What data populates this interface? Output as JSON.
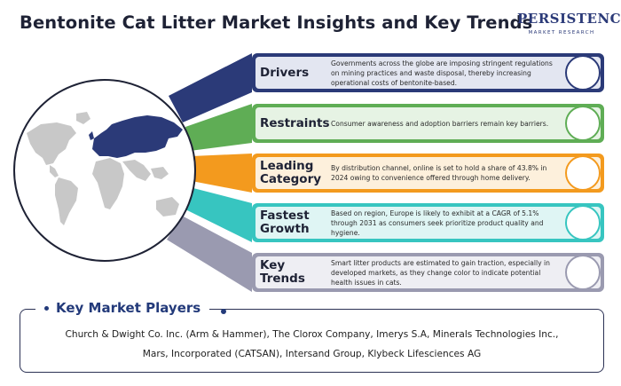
{
  "title": "Bentonite Cat Litter Market Insights and Key Trends",
  "logo": {
    "main": "PERSISTENCE",
    "sub": "MARKET RESEARCH"
  },
  "rows": [
    {
      "label": "Drivers",
      "description": "Governments across the globe are imposing stringent regulations on mining practices and waste disposal, thereby increasing operational costs of bentonite-based.",
      "color": "#2b3a78",
      "fill": "#e3e6f1"
    },
    {
      "label": "Restraints",
      "description": "Consumer awareness and adoption barriers remain key barriers.",
      "color": "#5fad55",
      "fill": "#e6f3e4"
    },
    {
      "label": "Leading Category",
      "description": "By distribution channel, online is set to hold a share of 43.8% in 2024 owing to convenience offered through home delivery.",
      "color": "#f39a1e",
      "fill": "#fdf0dc"
    },
    {
      "label": "Fastest Growth",
      "description": "Based on region, Europe is likely to exhibit at a CAGR of 5.1% through 2031 as consumers seek prioritize product quality and hygiene.",
      "color": "#37c5c0",
      "fill": "#dff5f4"
    },
    {
      "label": "Key Trends",
      "description": "Smart litter products are estimated to gain traction, especially in developed markets, as they change color to indicate potential health issues in cats.",
      "color": "#9a9ab0",
      "fill": "#eeeef3"
    }
  ],
  "players": {
    "heading": "Key Market Players",
    "line1": "Church & Dwight Co. Inc. (Arm & Hammer), The Clorox Company, Imerys S.A, Minerals Technologies Inc.,",
    "line2": "Mars, Incorporated (CATSAN), Intersand Group, Klybeck Lifesciences AG"
  },
  "map": {
    "highlight_color": "#2b3a78",
    "base_color": "#c8c8c8"
  }
}
